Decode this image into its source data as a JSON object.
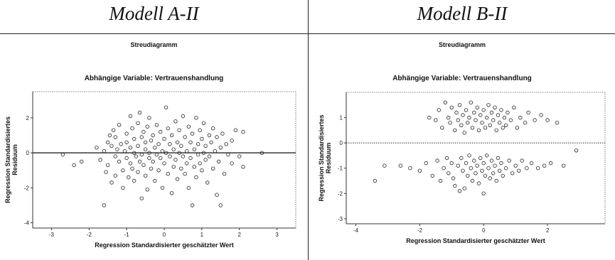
{
  "panels": [
    {
      "model_title": "Modell A-II",
      "chart_heading": "Streudiagramm",
      "dependent_variable": "Abhängige Variable: Vertrauenshandlung"
    },
    {
      "model_title": "Modell B-II",
      "chart_heading": "Streudiagramm",
      "dependent_variable": "Abhängige Variable: Vertrauenshandlung"
    }
  ],
  "chart_data": [
    {
      "type": "scatter",
      "title": "Streudiagramm",
      "subtitle": "Abhängige Variable: Vertrauenshandlung",
      "xlabel": "Regression Standardisierter geschätzter Wert",
      "ylabel": "Regression Standardisiertes Residuum",
      "xlim": [
        -3.5,
        3.5
      ],
      "ylim": [
        -4.3,
        3.5
      ],
      "xticks": [
        -3,
        -2,
        -1,
        0,
        1,
        2,
        3
      ],
      "yticks": [
        -4,
        -2,
        0,
        2
      ],
      "reference_line_y": 0,
      "reference_line_style": "solid",
      "marker": "open-circle",
      "points": [
        [
          -2.7,
          -0.1
        ],
        [
          -2.4,
          -0.7
        ],
        [
          -2.2,
          -0.5
        ],
        [
          -1.8,
          0.3
        ],
        [
          -1.7,
          -0.4
        ],
        [
          -1.6,
          -3.0
        ],
        [
          -1.6,
          0.1
        ],
        [
          -1.55,
          -1.1
        ],
        [
          -1.5,
          0.6
        ],
        [
          -1.5,
          -0.7
        ],
        [
          -1.45,
          1.0
        ],
        [
          -1.4,
          -1.7
        ],
        [
          -1.4,
          0.4
        ],
        [
          -1.35,
          1.3
        ],
        [
          -1.3,
          -0.2
        ],
        [
          -1.3,
          0.9
        ],
        [
          -1.3,
          -1.3
        ],
        [
          -1.25,
          0.2
        ],
        [
          -1.2,
          -0.5
        ],
        [
          -1.2,
          1.6
        ],
        [
          -1.15,
          0.5
        ],
        [
          -1.1,
          -1.0
        ],
        [
          -1.1,
          -2.0
        ],
        [
          -1.05,
          0.1
        ],
        [
          -1.0,
          1.1
        ],
        [
          -1.0,
          -0.3
        ],
        [
          -1.0,
          0.6
        ],
        [
          -0.95,
          -1.4
        ],
        [
          -0.9,
          2.1
        ],
        [
          -0.9,
          -0.6
        ],
        [
          -0.9,
          0.3
        ],
        [
          -0.85,
          1.4
        ],
        [
          -0.85,
          -0.9
        ],
        [
          -0.8,
          0.0
        ],
        [
          -0.8,
          0.8
        ],
        [
          -0.8,
          -1.6
        ],
        [
          -0.75,
          -0.2
        ],
        [
          -0.7,
          1.7
        ],
        [
          -0.7,
          0.4
        ],
        [
          -0.7,
          -1.1
        ],
        [
          -0.65,
          -0.5
        ],
        [
          -0.65,
          2.3
        ],
        [
          -0.6,
          0.9
        ],
        [
          -0.6,
          -0.1
        ],
        [
          -0.6,
          -2.6
        ],
        [
          -0.55,
          1.2
        ],
        [
          -0.55,
          -0.7
        ],
        [
          -0.5,
          0.2
        ],
        [
          -0.5,
          -1.3
        ],
        [
          -0.5,
          0.6
        ],
        [
          -0.45,
          -2.1
        ],
        [
          -0.45,
          1.5
        ],
        [
          -0.4,
          -0.3
        ],
        [
          -0.4,
          0.0
        ],
        [
          -0.4,
          2.0
        ],
        [
          -0.35,
          -0.9
        ],
        [
          -0.35,
          0.7
        ],
        [
          -0.3,
          1.0
        ],
        [
          -0.3,
          -0.5
        ],
        [
          -0.25,
          0.3
        ],
        [
          -0.25,
          -1.6
        ],
        [
          -0.2,
          1.6
        ],
        [
          -0.2,
          -0.1
        ],
        [
          -0.15,
          0.5
        ],
        [
          -0.15,
          -1.0
        ],
        [
          -0.1,
          1.2
        ],
        [
          -0.1,
          -0.3
        ],
        [
          -0.05,
          0.1
        ],
        [
          -0.05,
          -2.0
        ],
        [
          0.0,
          0.8
        ],
        [
          0.0,
          -0.6
        ],
        [
          0.05,
          2.6
        ],
        [
          0.05,
          0.0
        ],
        [
          0.1,
          -1.2
        ],
        [
          0.1,
          1.4
        ],
        [
          0.15,
          -0.2
        ],
        [
          0.15,
          0.5
        ],
        [
          0.2,
          -2.3
        ],
        [
          0.2,
          1.0
        ],
        [
          0.25,
          -0.8
        ],
        [
          0.25,
          0.2
        ],
        [
          0.3,
          1.8
        ],
        [
          0.3,
          -0.4
        ],
        [
          0.35,
          0.6
        ],
        [
          0.35,
          -1.5
        ],
        [
          0.4,
          0.0
        ],
        [
          0.4,
          1.3
        ],
        [
          0.45,
          -0.9
        ],
        [
          0.45,
          0.4
        ],
        [
          0.5,
          2.1
        ],
        [
          0.5,
          -0.2
        ],
        [
          0.55,
          0.9
        ],
        [
          0.55,
          -1.2
        ],
        [
          0.6,
          0.1
        ],
        [
          0.6,
          -0.6
        ],
        [
          0.65,
          1.5
        ],
        [
          0.65,
          -2.0
        ],
        [
          0.7,
          0.6
        ],
        [
          0.7,
          -0.3
        ],
        [
          0.75,
          -3.0
        ],
        [
          0.75,
          1.1
        ],
        [
          0.8,
          -0.8
        ],
        [
          0.8,
          0.2
        ],
        [
          0.85,
          2.0
        ],
        [
          0.85,
          -1.4
        ],
        [
          0.9,
          0.5
        ],
        [
          0.9,
          -0.1
        ],
        [
          0.95,
          1.3
        ],
        [
          0.95,
          -0.6
        ],
        [
          1.0,
          -1.0
        ],
        [
          1.0,
          0.8
        ],
        [
          1.05,
          0.0
        ],
        [
          1.05,
          1.7
        ],
        [
          1.1,
          -0.4
        ],
        [
          1.1,
          0.4
        ],
        [
          1.15,
          -1.7
        ],
        [
          1.2,
          1.0
        ],
        [
          1.2,
          -0.2
        ],
        [
          1.25,
          0.6
        ],
        [
          1.3,
          -0.9
        ],
        [
          1.3,
          1.4
        ],
        [
          1.35,
          0.1
        ],
        [
          1.4,
          -2.4
        ],
        [
          1.4,
          0.9
        ],
        [
          1.45,
          -0.5
        ],
        [
          1.5,
          -3.0
        ],
        [
          1.5,
          0.3
        ],
        [
          1.55,
          1.1
        ],
        [
          1.6,
          -1.2
        ],
        [
          1.65,
          0.5
        ],
        [
          1.7,
          -0.1
        ],
        [
          1.8,
          0.7
        ],
        [
          1.8,
          -0.6
        ],
        [
          1.9,
          1.3
        ],
        [
          2.0,
          -0.2
        ],
        [
          2.1,
          1.2
        ],
        [
          2.1,
          -0.8
        ],
        [
          2.6,
          0.0
        ]
      ]
    },
    {
      "type": "scatter",
      "title": "Streudiagramm",
      "subtitle": "Abhängige Variable: Vertrauenshandlung",
      "xlabel": "Regression Standardisierter geschätzter Wert",
      "ylabel": "Regression Standardisiertes Residuum",
      "xlim": [
        -4.3,
        3.8
      ],
      "ylim": [
        -3.2,
        2.0
      ],
      "xticks": [
        -4,
        -2,
        0,
        2
      ],
      "yticks": [
        -3,
        -2,
        -1,
        0,
        1
      ],
      "reference_line_y": 0,
      "reference_line_style": "dotted",
      "marker": "open-circle",
      "points": [
        [
          -3.4,
          -1.5
        ],
        [
          -3.1,
          -0.9
        ],
        [
          -2.6,
          -0.9
        ],
        [
          -2.3,
          -1.0
        ],
        [
          -2.0,
          -1.1
        ],
        [
          -1.8,
          -0.8
        ],
        [
          -1.7,
          1.0
        ],
        [
          -1.6,
          -1.3
        ],
        [
          -1.5,
          0.9
        ],
        [
          -1.45,
          -0.7
        ],
        [
          -1.4,
          1.3
        ],
        [
          -1.35,
          -1.5
        ],
        [
          -1.3,
          0.6
        ],
        [
          -1.25,
          -1.0
        ],
        [
          -1.2,
          1.6
        ],
        [
          -1.15,
          -0.6
        ],
        [
          -1.1,
          1.0
        ],
        [
          -1.1,
          -1.2
        ],
        [
          -1.05,
          0.8
        ],
        [
          -1.0,
          -0.8
        ],
        [
          -1.0,
          1.4
        ],
        [
          -0.95,
          -1.4
        ],
        [
          -0.9,
          0.5
        ],
        [
          -0.9,
          -1.7
        ],
        [
          -0.85,
          1.2
        ],
        [
          -0.8,
          -0.9
        ],
        [
          -0.8,
          0.9
        ],
        [
          -0.75,
          -1.9
        ],
        [
          -0.75,
          1.5
        ],
        [
          -0.7,
          -0.6
        ],
        [
          -0.7,
          0.7
        ],
        [
          -0.65,
          -1.1
        ],
        [
          -0.65,
          1.1
        ],
        [
          -0.6,
          -1.8
        ],
        [
          -0.6,
          0.4
        ],
        [
          -0.55,
          -0.8
        ],
        [
          -0.55,
          1.3
        ],
        [
          -0.5,
          -1.3
        ],
        [
          -0.5,
          0.8
        ],
        [
          -0.45,
          -0.5
        ],
        [
          -0.45,
          1.0
        ],
        [
          -0.4,
          -1.0
        ],
        [
          -0.4,
          1.6
        ],
        [
          -0.35,
          -1.5
        ],
        [
          -0.35,
          0.6
        ],
        [
          -0.3,
          -0.7
        ],
        [
          -0.3,
          1.2
        ],
        [
          -0.25,
          -1.2
        ],
        [
          -0.25,
          0.9
        ],
        [
          -0.2,
          -0.9
        ],
        [
          -0.2,
          1.4
        ],
        [
          -0.15,
          -1.6
        ],
        [
          -0.15,
          0.5
        ],
        [
          -0.1,
          -0.6
        ],
        [
          -0.1,
          1.1
        ],
        [
          -0.05,
          -1.1
        ],
        [
          -0.05,
          0.8
        ],
        [
          0.0,
          -2.0
        ],
        [
          0.0,
          1.3
        ],
        [
          0.0,
          -0.8
        ],
        [
          0.05,
          0.6
        ],
        [
          0.05,
          -1.3
        ],
        [
          0.1,
          1.0
        ],
        [
          0.1,
          -0.5
        ],
        [
          0.15,
          1.5
        ],
        [
          0.15,
          -1.0
        ],
        [
          0.2,
          0.7
        ],
        [
          0.2,
          -1.4
        ],
        [
          0.25,
          1.2
        ],
        [
          0.25,
          -0.7
        ],
        [
          0.3,
          0.9
        ],
        [
          0.3,
          -1.2
        ],
        [
          0.35,
          1.4
        ],
        [
          0.35,
          -0.9
        ],
        [
          0.4,
          0.5
        ],
        [
          0.4,
          -1.5
        ],
        [
          0.45,
          1.1
        ],
        [
          0.45,
          -0.6
        ],
        [
          0.5,
          0.8
        ],
        [
          0.5,
          -1.1
        ],
        [
          0.55,
          1.3
        ],
        [
          0.55,
          -0.8
        ],
        [
          0.6,
          0.6
        ],
        [
          0.6,
          -1.3
        ],
        [
          0.65,
          1.0
        ],
        [
          0.7,
          -1.0
        ],
        [
          0.7,
          0.7
        ],
        [
          0.75,
          1.2
        ],
        [
          0.8,
          -0.7
        ],
        [
          0.85,
          0.9
        ],
        [
          0.9,
          -1.2
        ],
        [
          0.95,
          1.4
        ],
        [
          1.0,
          -0.9
        ],
        [
          1.05,
          0.6
        ],
        [
          1.1,
          -1.1
        ],
        [
          1.15,
          1.0
        ],
        [
          1.2,
          -0.7
        ],
        [
          1.3,
          0.8
        ],
        [
          1.35,
          -1.0
        ],
        [
          1.4,
          1.2
        ],
        [
          1.5,
          -0.8
        ],
        [
          1.6,
          0.9
        ],
        [
          1.7,
          -1.0
        ],
        [
          1.8,
          1.1
        ],
        [
          1.9,
          -0.9
        ],
        [
          2.0,
          0.9
        ],
        [
          2.1,
          -0.8
        ],
        [
          2.3,
          0.8
        ],
        [
          2.5,
          -0.9
        ],
        [
          2.9,
          -0.3
        ]
      ]
    }
  ]
}
